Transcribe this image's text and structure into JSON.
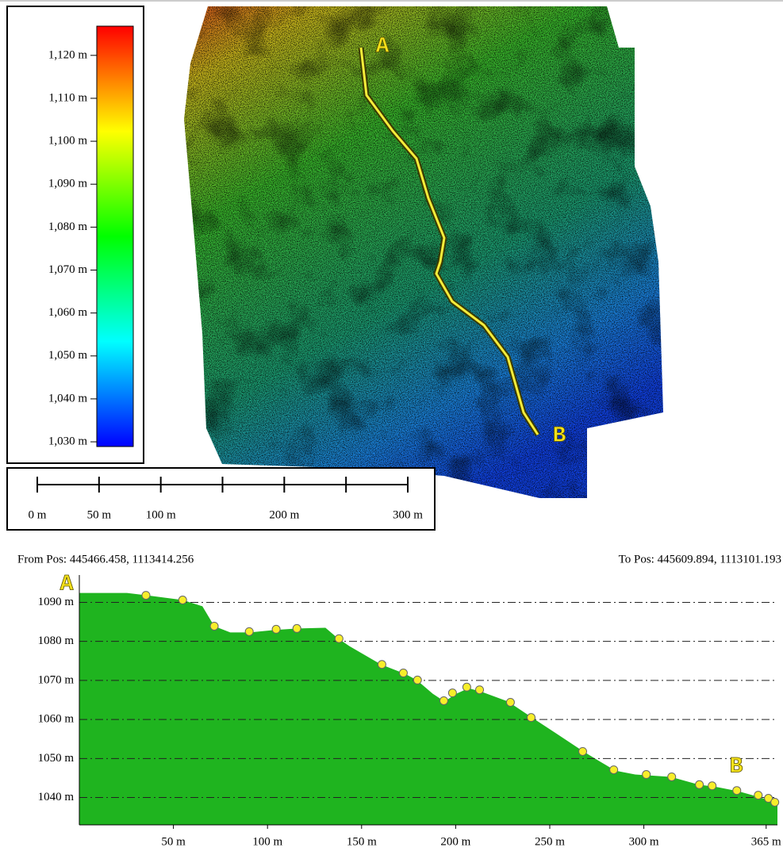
{
  "map": {
    "labels": [
      "A",
      "B"
    ]
  },
  "legend": {
    "lim": [
      1028.9,
      1126.8
    ],
    "colors": [
      "#0000ff",
      "#00ffff",
      "#00ff00",
      "#ffff00",
      "#ff0000"
    ],
    "ticks": [
      {
        "value": 1030,
        "label": "1,030 m"
      },
      {
        "value": 1040,
        "label": "1,040 m"
      },
      {
        "value": 1050,
        "label": "1,050 m"
      },
      {
        "value": 1060,
        "label": "1,060 m"
      },
      {
        "value": 1070,
        "label": "1,070 m"
      },
      {
        "value": 1080,
        "label": "1,080 m"
      },
      {
        "value": 1090,
        "label": "1,090 m"
      },
      {
        "value": 1100,
        "label": "1,100 m"
      },
      {
        "value": 1110,
        "label": "1,110 m"
      },
      {
        "value": 1120,
        "label": "1,120 m"
      }
    ]
  },
  "scale_bar": {
    "lim": [
      0,
      300
    ],
    "ticks": [
      0,
      50,
      100,
      150,
      200,
      250,
      300
    ],
    "labels": [
      {
        "value": 0,
        "label": "0 m"
      },
      {
        "value": 50,
        "label": "50 m"
      },
      {
        "value": 100,
        "label": "100 m"
      },
      {
        "value": 200,
        "label": "200 m"
      },
      {
        "value": 300,
        "label": "300 m"
      }
    ]
  },
  "chart_data": {
    "type": "area",
    "from_label": "From Pos: 445466.458, 1113414.256",
    "to_label": "To Pos: 445609.894, 1113101.193",
    "annotations": [
      "A",
      "B"
    ],
    "xlim": [
      0,
      371
    ],
    "ylim": [
      1033,
      1097
    ],
    "xticks": [
      {
        "value": 50,
        "label": "50 m"
      },
      {
        "value": 100,
        "label": "100 m"
      },
      {
        "value": 150,
        "label": "150 m"
      },
      {
        "value": 200,
        "label": "200 m"
      },
      {
        "value": 250,
        "label": "250 m"
      },
      {
        "value": 300,
        "label": "300 m"
      },
      {
        "value": 365,
        "label": "365 m"
      }
    ],
    "yticks": [
      {
        "value": 1040,
        "label": "1040 m"
      },
      {
        "value": 1050,
        "label": "1050 m"
      },
      {
        "value": 1060,
        "label": "1060 m"
      },
      {
        "value": 1070,
        "label": "1070 m"
      },
      {
        "value": 1080,
        "label": "1080 m"
      },
      {
        "value": 1090,
        "label": "1090 m"
      }
    ],
    "grid": true,
    "series": [
      {
        "color": "#1fb41f",
        "x": [
          0,
          25.3,
          35.9,
          54.9,
          65.4,
          71.7,
          80.2,
          90.7,
          103.4,
          116.0,
          130.8,
          137.1,
          143.5,
          160.3,
          173.0,
          179.3,
          187.8,
          194.1,
          200.4,
          206.8,
          213.1,
          227.8,
          240.5,
          253.2,
          267.9,
          276.4,
          284.8,
          295.4,
          301.7,
          314.3,
          329.1,
          337.6,
          350.2,
          360.8,
          371.0
        ],
        "values": [
          1092.4,
          1092.4,
          1091.8,
          1090.6,
          1089.0,
          1083.9,
          1082.3,
          1082.3,
          1082.9,
          1083.3,
          1083.5,
          1080.9,
          1078.8,
          1074.1,
          1071.7,
          1070.1,
          1066.6,
          1064.6,
          1066.6,
          1068.0,
          1067.2,
          1064.6,
          1060.5,
          1056.5,
          1051.8,
          1049.3,
          1046.9,
          1045.9,
          1045.7,
          1045.3,
          1043.3,
          1042.8,
          1041.6,
          1040.2,
          1038.6
        ]
      },
      {
        "color": "#f7ee2a",
        "x": [
          35.4,
          54.9,
          71.7,
          90.3,
          104.6,
          115.6,
          138.0,
          160.8,
          172.2,
          179.7,
          193.7,
          198.3,
          205.9,
          212.7,
          229.1,
          240.1,
          267.5,
          284.0,
          301.3,
          314.8,
          329.5,
          336.3,
          349.4,
          360.8,
          366.2,
          369.6
        ],
        "values": [
          1091.8,
          1090.6,
          1083.9,
          1082.5,
          1083.1,
          1083.3,
          1080.7,
          1074.1,
          1071.9,
          1070.1,
          1064.8,
          1066.8,
          1068.3,
          1067.6,
          1064.4,
          1060.5,
          1051.8,
          1047.1,
          1045.9,
          1045.3,
          1043.3,
          1043.0,
          1041.8,
          1040.6,
          1039.8,
          1038.8
        ]
      }
    ]
  }
}
